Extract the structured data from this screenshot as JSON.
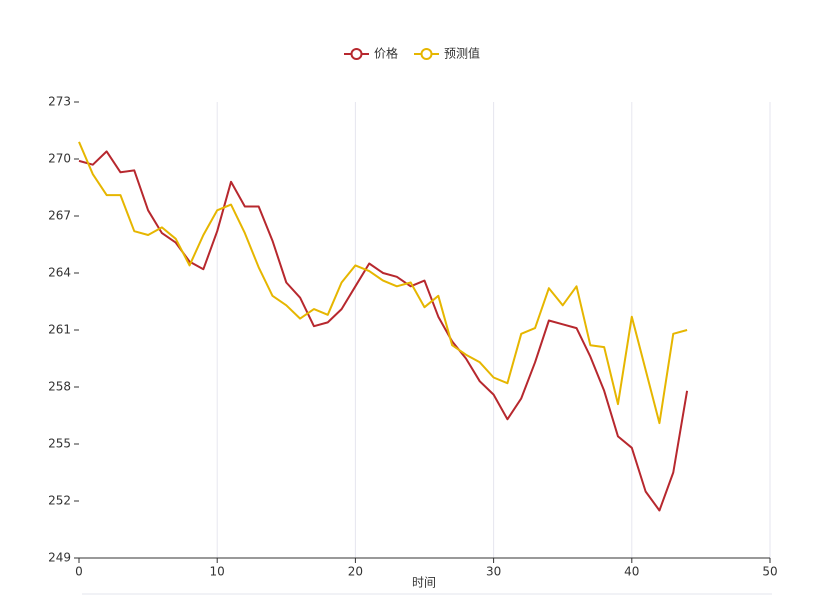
{
  "chart_data": {
    "type": "line",
    "xlabel": "时间",
    "x": [
      0,
      1,
      2,
      3,
      4,
      5,
      6,
      7,
      8,
      9,
      10,
      11,
      12,
      13,
      14,
      15,
      16,
      17,
      18,
      19,
      20,
      21,
      22,
      23,
      24,
      25,
      26,
      27,
      28,
      29,
      30,
      31,
      32,
      33,
      34,
      35,
      36,
      37,
      38,
      39,
      40,
      41,
      42,
      43,
      44
    ],
    "series": [
      {
        "name": "价格",
        "color": "#b7282e",
        "values": [
          269.9,
          269.7,
          270.4,
          269.3,
          269.4,
          267.3,
          266.1,
          265.6,
          264.6,
          264.2,
          266.2,
          268.8,
          267.5,
          267.5,
          265.7,
          263.5,
          262.7,
          261.2,
          261.4,
          262.1,
          263.3,
          264.5,
          264.0,
          263.8,
          263.3,
          263.6,
          261.7,
          260.4,
          259.5,
          258.3,
          257.6,
          256.3,
          257.4,
          259.3,
          261.5,
          261.3,
          261.1,
          259.6,
          257.8,
          255.4,
          254.8,
          252.5,
          251.5,
          253.5,
          257.8
        ]
      },
      {
        "name": "预测值",
        "color": "#e6b600",
        "values": [
          270.9,
          269.2,
          268.1,
          268.1,
          266.2,
          266.0,
          266.4,
          265.8,
          264.4,
          266.0,
          267.3,
          267.6,
          266.1,
          264.3,
          262.8,
          262.3,
          261.6,
          262.1,
          261.8,
          263.5,
          264.4,
          264.1,
          263.6,
          263.3,
          263.5,
          262.2,
          262.8,
          260.2,
          259.7,
          259.3,
          258.5,
          258.2,
          260.8,
          261.1,
          263.2,
          262.3,
          263.3,
          260.2,
          260.1,
          257.1,
          261.7,
          258.9,
          256.1,
          260.8,
          261.0
        ]
      }
    ],
    "xlim": [
      0,
      50
    ],
    "xticks": [
      0,
      10,
      20,
      30,
      40,
      50
    ],
    "ylim": [
      249,
      273
    ],
    "yticks": [
      249,
      252,
      255,
      258,
      261,
      264,
      267,
      270,
      273
    ],
    "grid": true,
    "legend": "top"
  }
}
